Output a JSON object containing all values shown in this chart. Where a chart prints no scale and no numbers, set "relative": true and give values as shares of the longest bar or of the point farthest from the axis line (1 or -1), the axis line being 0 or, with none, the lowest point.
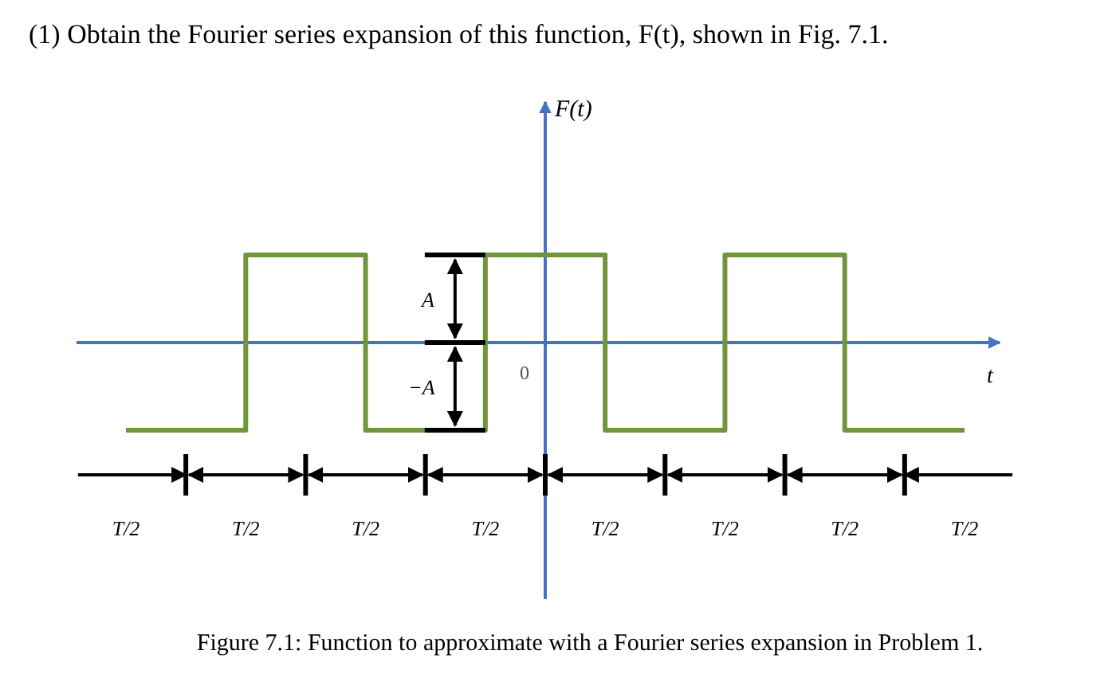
{
  "chart_data": {
    "type": "step",
    "title": "(1) Obtain the Fourier series expansion of this function, F(t), shown in Fig. 7.1.",
    "xlabel": "t",
    "relative": true,
    "categories": [
      null,
      null,
      null,
      null,
      null,
      null,
      null,
      null
    ],
    "series": [
      {
        "color": "#70963c",
        "values": [
          -1,
          1,
          -1,
          1,
          -1,
          1,
          -1,
          -1
        ]
      }
    ],
    "ref_lines": [
      {
        "axis": "y",
        "value": 0,
        "color": "#4472c4"
      }
    ],
    "annotations": [
      "F(t)",
      "A",
      "−A",
      "0",
      "T/2",
      "T/2",
      "T/2",
      "T/2",
      "T/2",
      "T/2",
      "T/2",
      "T/2",
      "Figure 7.1: Function to approximate with a Fourier series expansion in Problem 1."
    ]
  }
}
